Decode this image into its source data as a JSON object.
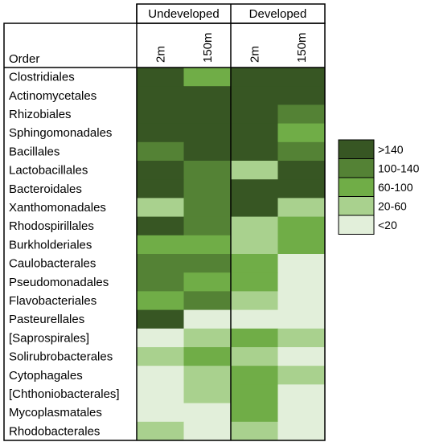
{
  "chart_data": {
    "type": "heatmap",
    "row_header": "Order",
    "groups": [
      {
        "label": "Undeveloped",
        "columns": [
          "2m",
          "150m"
        ]
      },
      {
        "label": "Developed",
        "columns": [
          "2m",
          "150m"
        ]
      }
    ],
    "rows": [
      "Clostridiales",
      "Actinomycetales",
      "Rhizobiales",
      "Sphingomonadales",
      "Bacillales",
      "Lactobacillales",
      "Bacteroidales",
      "Xanthomonadales",
      "Rhodospirillales",
      "Burkholderiales",
      "Caulobacterales",
      "Pseudomonadales",
      "Flavobacteriales",
      "Pasteurellales",
      "[Saprospirales]",
      "Solirubrobacterales",
      "Cytophagales",
      "[Chthoniobacterales]",
      "Mycoplasmatales",
      "Rhodobacterales"
    ],
    "values": [
      [
        ">140",
        "60-100",
        ">140",
        ">140"
      ],
      [
        ">140",
        ">140",
        ">140",
        ">140"
      ],
      [
        ">140",
        ">140",
        ">140",
        "100-140"
      ],
      [
        ">140",
        ">140",
        ">140",
        "60-100"
      ],
      [
        "100-140",
        ">140",
        ">140",
        "100-140"
      ],
      [
        ">140",
        "100-140",
        "20-60",
        ">140"
      ],
      [
        ">140",
        "100-140",
        ">140",
        ">140"
      ],
      [
        "20-60",
        "100-140",
        ">140",
        "20-60"
      ],
      [
        ">140",
        "100-140",
        "20-60",
        "60-100"
      ],
      [
        "60-100",
        "60-100",
        "20-60",
        "60-100"
      ],
      [
        "100-140",
        "100-140",
        "60-100",
        "<20"
      ],
      [
        "100-140",
        "60-100",
        "60-100",
        "<20"
      ],
      [
        "60-100",
        "100-140",
        "20-60",
        "<20"
      ],
      [
        ">140",
        "<20",
        "<20",
        "<20"
      ],
      [
        "<20",
        "20-60",
        "60-100",
        "20-60"
      ],
      [
        "20-60",
        "60-100",
        "20-60",
        "<20"
      ],
      [
        "<20",
        "20-60",
        "60-100",
        "20-60"
      ],
      [
        "<20",
        "20-60",
        "60-100",
        "<20"
      ],
      [
        "<20",
        "<20",
        "60-100",
        "<20"
      ],
      [
        "20-60",
        "<20",
        "20-60",
        "<20"
      ]
    ],
    "legend": {
      "placement": "right",
      "items": [
        {
          "label": ">140",
          "color": "#375623"
        },
        {
          "label": "100-140",
          "color": "#548235"
        },
        {
          "label": "60-100",
          "color": "#70ad47"
        },
        {
          "label": "20-60",
          "color": "#a9d18e"
        },
        {
          "label": "<20",
          "color": "#e2efda"
        }
      ]
    }
  }
}
